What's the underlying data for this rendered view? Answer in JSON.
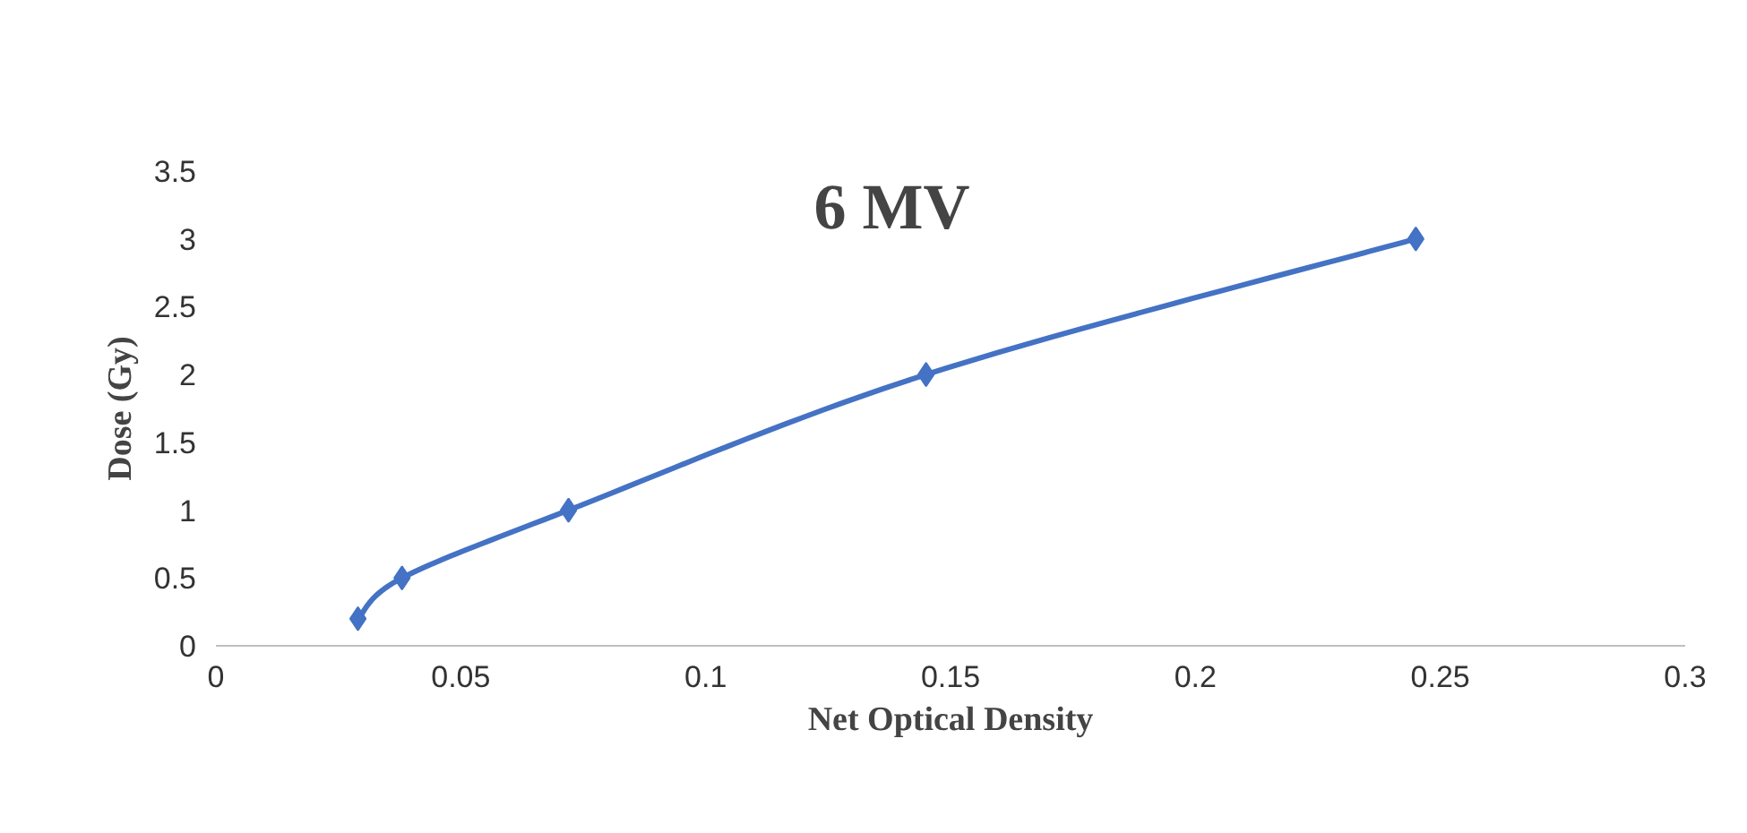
{
  "chart_data": {
    "type": "line",
    "title": "6 MV",
    "xlabel": "Net Optical Density",
    "ylabel": "Dose (Gy)",
    "x": [
      0.029,
      0.038,
      0.072,
      0.145,
      0.245
    ],
    "series": [
      {
        "color": "#4472c4",
        "values": [
          0.2,
          0.5,
          1,
          2,
          3
        ]
      }
    ],
    "xlim": [
      0,
      0.3
    ],
    "xticks": [
      0,
      0.05,
      0.1,
      0.15,
      0.2,
      0.25,
      0.3
    ],
    "ylim": [
      0,
      3.5
    ],
    "yticks": [
      0,
      0.5,
      1,
      1.5,
      2,
      2.5,
      3,
      3.5
    ],
    "marker": "diamond",
    "line_style": "solid",
    "grid": false
  }
}
